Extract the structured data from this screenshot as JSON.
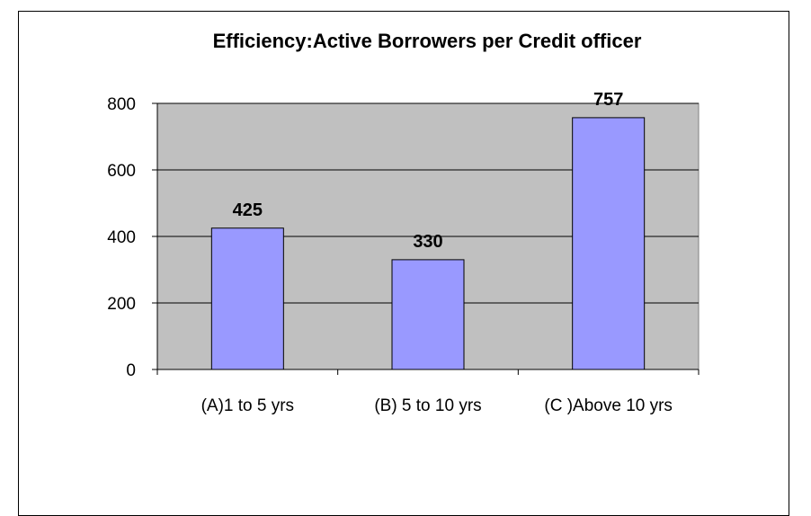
{
  "chart_data": {
    "type": "bar",
    "title": "Efficiency:Active Borrowers per Credit officer",
    "categories": [
      "(A)1 to 5 yrs",
      "(B) 5 to 10 yrs",
      "(C )Above 10 yrs"
    ],
    "values": [
      425,
      330,
      757
    ],
    "data_labels": [
      "425",
      "330",
      "757"
    ],
    "y_ticks": [
      "0",
      "200",
      "400",
      "600",
      "800"
    ],
    "ylim": [
      0,
      800
    ],
    "xlabel": "",
    "ylabel": "",
    "grid": true,
    "legend": "none",
    "colors": {
      "bar_fill": "#9999ff",
      "plot_background": "#c0c0c0",
      "bar_stroke": "#000000"
    }
  }
}
